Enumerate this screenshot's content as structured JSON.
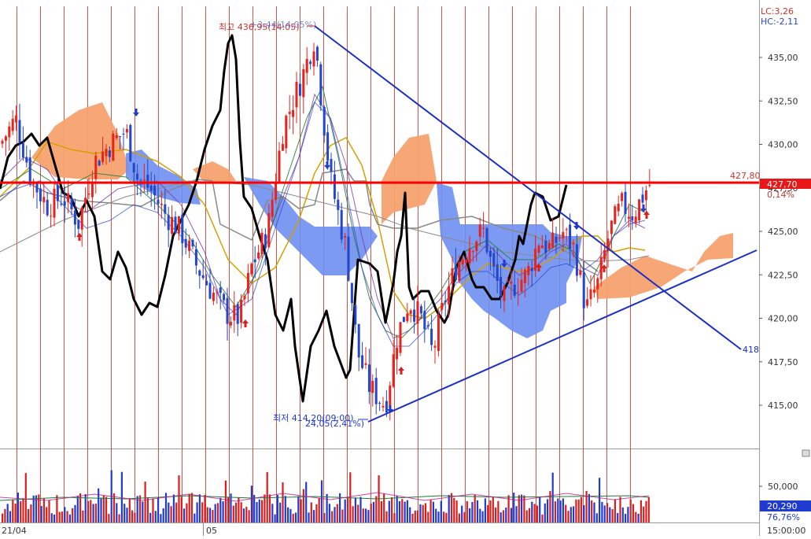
{
  "chart_data": [
    {
      "type": "candlestick",
      "panel": "price",
      "ylim": [
        412.5,
        437.5
      ],
      "y_ticks": [
        {
          "value": 435.0,
          "label": "435,00"
        },
        {
          "value": 432.5,
          "label": "432,50"
        },
        {
          "value": 430.0,
          "label": "430,00"
        },
        {
          "value": 427.5,
          "label": "427,50"
        },
        {
          "value": 425.0,
          "label": "425,00"
        },
        {
          "value": 422.5,
          "label": "422,50"
        },
        {
          "value": 420.0,
          "label": "420,00"
        },
        {
          "value": 417.5,
          "label": "417,50"
        },
        {
          "value": 415.0,
          "label": "415,00"
        }
      ],
      "legend": {
        "lc": "LC:3,26",
        "hc": "HC:-2,11"
      },
      "high_annotation": "최고 436,95(14:05)",
      "high_annotation_overlap": "+3,44(14,05%)",
      "high_value": 436.95,
      "low_annotation": "최저 414,20(09:00)",
      "low_annotation_sub": "24,05(2,41%)",
      "low_value": 414.2,
      "horizontal_line": {
        "value": 427.8,
        "label": "427,80"
      },
      "current_price": {
        "value": 427.7,
        "label": "427,70",
        "change": "0,14%"
      },
      "trendline_label": "418",
      "colors": {
        "up": "#e8231c",
        "down": "#2446c8",
        "trendline": "#1a2fc9",
        "horizontal": "#ff0000",
        "cloud_bull": "#f5a26e",
        "cloud_bear": "#6e8ff0",
        "black_line": "#000000",
        "gold_ma": "#d4a000",
        "gray_line": "#888888"
      }
    },
    {
      "type": "bar",
      "panel": "volume",
      "y_ticks": [
        {
          "value": 50000,
          "label": "50,000"
        }
      ],
      "current_volume": "20,290",
      "current_ratio": "76,76%"
    }
  ],
  "x_axis": {
    "labels": [
      {
        "label": "21/04"
      },
      {
        "label": "05"
      },
      {
        "label": "15:00:00"
      }
    ]
  }
}
